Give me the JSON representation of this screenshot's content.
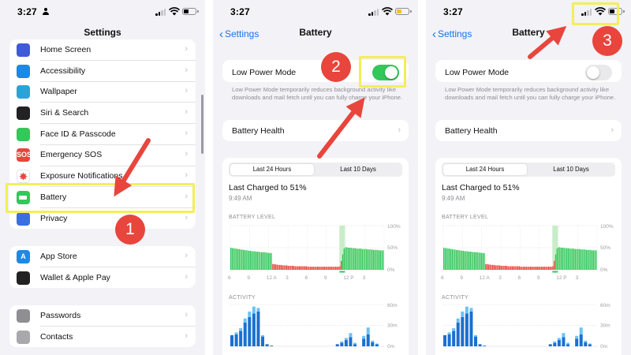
{
  "status": {
    "time": "3:27"
  },
  "panel1": {
    "title": "Settings",
    "group1": [
      {
        "label": "Home Screen",
        "icon": "home-screen-icon",
        "color": "#3f5bd9"
      },
      {
        "label": "Accessibility",
        "icon": "accessibility-icon",
        "color": "#1e88e5"
      },
      {
        "label": "Wallpaper",
        "icon": "wallpaper-icon",
        "color": "#2aa4d8"
      },
      {
        "label": "Siri & Search",
        "icon": "siri-icon",
        "color": "#222222"
      },
      {
        "label": "Face ID & Passcode",
        "icon": "face-id-icon",
        "color": "#34c759"
      },
      {
        "label": "Emergency SOS",
        "icon": "sos-icon",
        "color": "#e8453c",
        "glyph": "SOS"
      },
      {
        "label": "Exposure Notifications",
        "icon": "exposure-icon",
        "color": "#ffffff"
      },
      {
        "label": "Battery",
        "icon": "battery-icon",
        "color": "#34c759"
      },
      {
        "label": "Privacy",
        "icon": "privacy-hand-icon",
        "color": "#3b6fe0"
      }
    ],
    "group2": [
      {
        "label": "App Store",
        "icon": "app-store-icon",
        "color": "#1e88e5",
        "glyph": "A"
      },
      {
        "label": "Wallet & Apple Pay",
        "icon": "wallet-icon",
        "color": "#222222"
      }
    ],
    "group3": [
      {
        "label": "Passwords",
        "icon": "key-icon",
        "color": "#8e8e93"
      },
      {
        "label": "Contacts",
        "icon": "contacts-icon",
        "color": "#a9a9ad"
      }
    ]
  },
  "battery": {
    "back_label": "Settings",
    "title": "Battery",
    "low_power_label": "Low Power Mode",
    "low_power_desc": "Low Power Mode temporarily reduces background activity like downloads and mail fetch until you can fully charge your iPhone.",
    "battery_health_label": "Battery Health",
    "tab_24h": "Last 24 Hours",
    "tab_10d": "Last 10 Days",
    "last_charged": "Last Charged to 51%",
    "last_charged_time": "9:49 AM",
    "battery_level_label": "BATTERY LEVEL",
    "activity_label": "ACTIVITY",
    "level_ticks": [
      "100%",
      "50%",
      "0%"
    ],
    "activity_ticks": [
      "60m",
      "30m",
      "0m"
    ],
    "x_ticks": [
      "6",
      "9",
      "12 A",
      "3",
      "6",
      "9",
      "12 P",
      "3"
    ]
  },
  "panel2": {
    "low_power_on": true
  },
  "panel3": {
    "low_power_on": false
  },
  "annotations": {
    "step1": "1",
    "step2": "2",
    "step3": "3"
  },
  "colors": {
    "highlight": "#f3ee5a",
    "arrow": "#e8453c",
    "toggle_on": "#34c759",
    "accent": "#1a73e8"
  },
  "chart_data": [
    {
      "type": "bar",
      "title": "BATTERY LEVEL",
      "ylim": [
        0,
        100
      ],
      "y_ticks": [
        "100%",
        "50%",
        "0%"
      ],
      "x_ticks": [
        "6",
        "9",
        "12 A",
        "3",
        "6",
        "9",
        "12 P",
        "3"
      ],
      "series": [
        {
          "name": "",
          "values": [
            50,
            49,
            49,
            48,
            48,
            47,
            47,
            46,
            46,
            45,
            45,
            44,
            44,
            43,
            43,
            42,
            42,
            42,
            41,
            41,
            41,
            40,
            40,
            40,
            40,
            39,
            39,
            38,
            38,
            38,
            13,
            13,
            12,
            12,
            11,
            11,
            11,
            10,
            10,
            10,
            10,
            9,
            9,
            9,
            9,
            9,
            8,
            8,
            8,
            8,
            8,
            8,
            8,
            8,
            8,
            7,
            7,
            7,
            7,
            7,
            7,
            7,
            7,
            7,
            7,
            7,
            7,
            7,
            7,
            7,
            7,
            7,
            7,
            7,
            7,
            7,
            7,
            7,
            8,
            20,
            35,
            48,
            51,
            51,
            50,
            50,
            50,
            49,
            49,
            49,
            48,
            48,
            48,
            48,
            47,
            47,
            47,
            47,
            46,
            46,
            46,
            46,
            45,
            45,
            45,
            45,
            44,
            44,
            44,
            44
          ]
        }
      ]
    },
    {
      "type": "bar",
      "title": "ACTIVITY",
      "ylim": [
        0,
        60
      ],
      "y_ticks": [
        "60m",
        "30m",
        "0m"
      ],
      "x_ticks": [
        "6",
        "9",
        "12 A",
        "3",
        "6",
        "9",
        "12 P",
        "3"
      ],
      "series": [
        {
          "name": "",
          "values": [
            16,
            17,
            22,
            34,
            42,
            47,
            50,
            14,
            3,
            1,
            0,
            0,
            0,
            0,
            0,
            0,
            0,
            0,
            0,
            0,
            0,
            0,
            0,
            0,
            3,
            5,
            9,
            13,
            3,
            0,
            11,
            17,
            6,
            3,
            0
          ]
        },
        {
          "name": "",
          "values": [
            0,
            3,
            4,
            6,
            8,
            10,
            5,
            2,
            0,
            0,
            0,
            0,
            0,
            0,
            0,
            0,
            0,
            0,
            0,
            0,
            0,
            0,
            0,
            0,
            0,
            2,
            3,
            6,
            2,
            0,
            4,
            10,
            2,
            1,
            0
          ]
        }
      ]
    }
  ]
}
